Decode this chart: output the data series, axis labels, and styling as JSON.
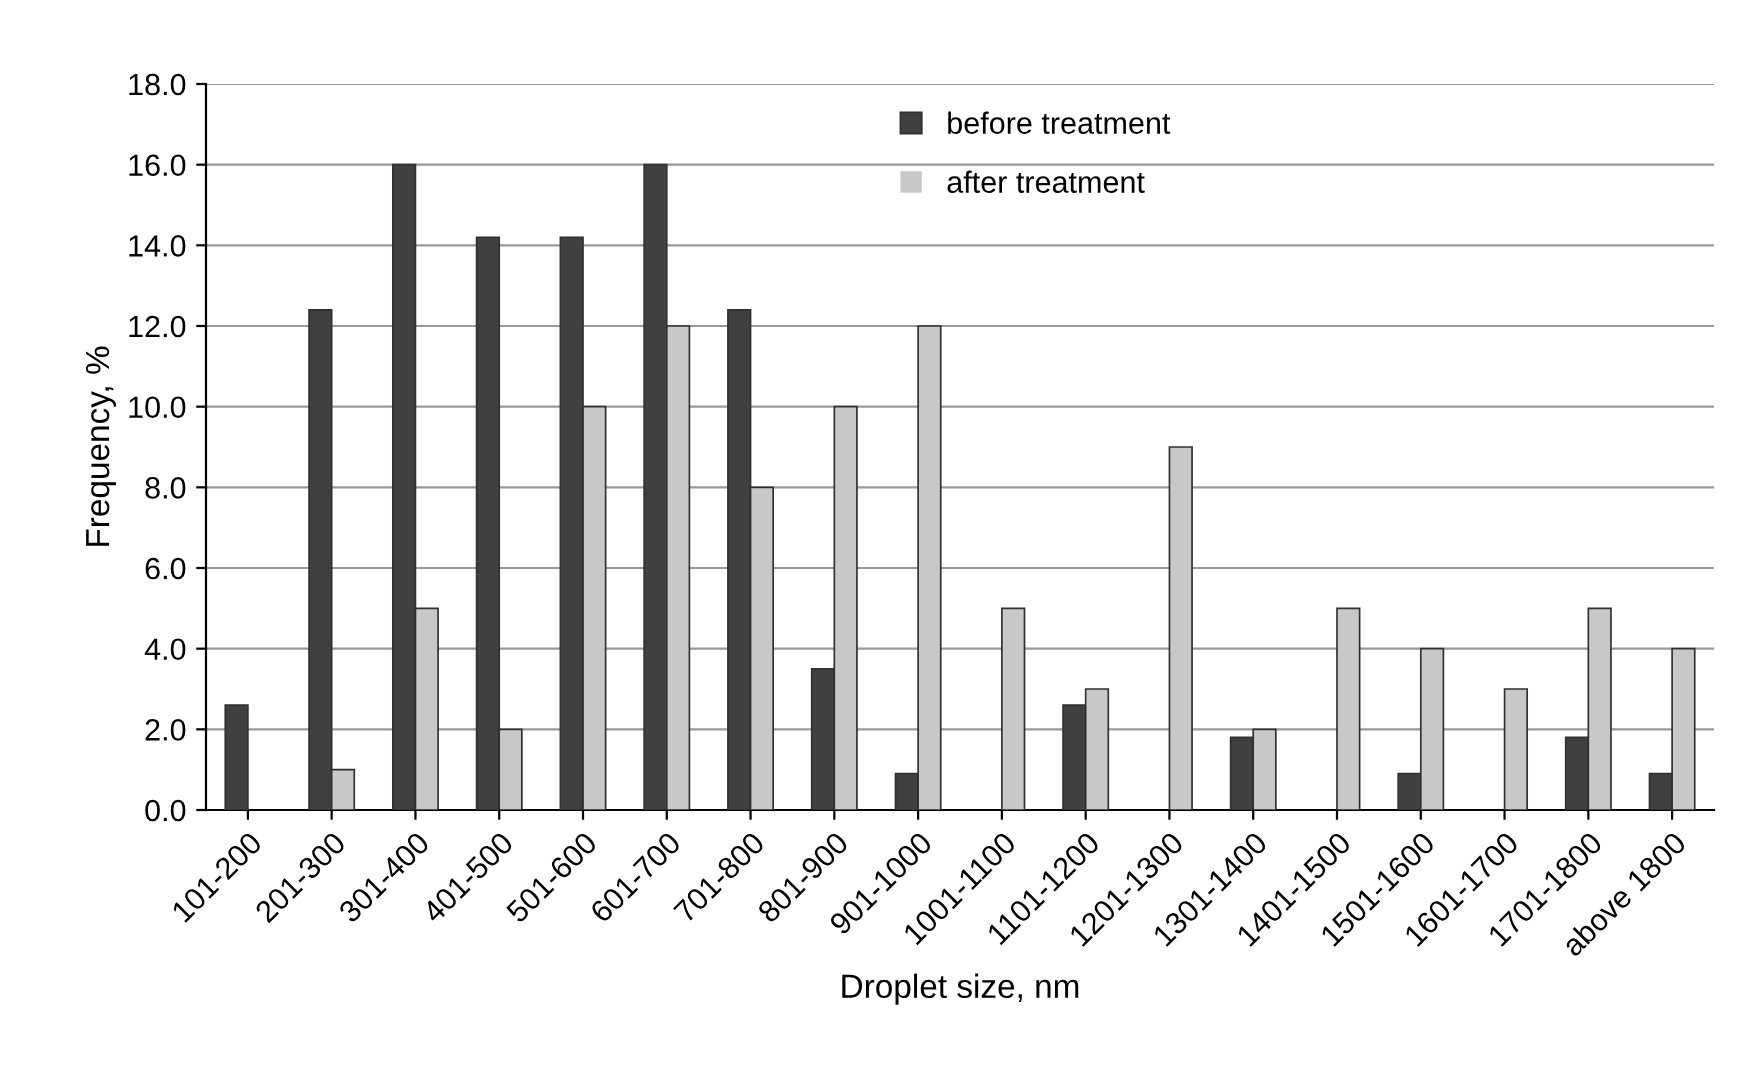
{
  "chart_data": {
    "type": "bar",
    "xlabel": "Droplet size, nm",
    "ylabel": "Frequency, %",
    "categories": [
      "101-200",
      "201-300",
      "301-400",
      "401-500",
      "501-600",
      "601-700",
      "701-800",
      "801-900",
      "901-1000",
      "1001-1100",
      "1101-1200",
      "1201-1300",
      "1301-1400",
      "1401-1500",
      "1501-1600",
      "1601-1700",
      "1701-1800",
      "above 1800"
    ],
    "series": [
      {
        "name": "before treatment",
        "color": "#404040",
        "values": [
          2.6,
          12.4,
          16.0,
          14.2,
          14.2,
          16.0,
          12.4,
          3.5,
          0.9,
          0,
          2.6,
          0,
          1.8,
          0,
          0.9,
          0,
          1.8,
          0.9
        ]
      },
      {
        "name": "after treatment",
        "color": "#c8c8c8",
        "values": [
          0,
          1,
          5,
          2,
          10,
          12,
          8,
          10,
          12,
          5,
          3,
          9,
          2,
          5,
          4,
          3,
          5,
          4
        ]
      }
    ],
    "ylim": [
      0,
      18
    ],
    "yticks": [
      {
        "value": 0,
        "label": "0.0"
      },
      {
        "value": 2,
        "label": "2.0"
      },
      {
        "value": 4,
        "label": "4.0"
      },
      {
        "value": 6,
        "label": "6.0"
      },
      {
        "value": 8,
        "label": "8.0"
      },
      {
        "value": 10,
        "label": "10.0"
      },
      {
        "value": 12,
        "label": "12.0"
      },
      {
        "value": 14,
        "label": "14.0"
      },
      {
        "value": 16,
        "label": "16.0"
      },
      {
        "value": 18,
        "label": "18.0"
      }
    ],
    "grid": "y",
    "legend": "top"
  }
}
